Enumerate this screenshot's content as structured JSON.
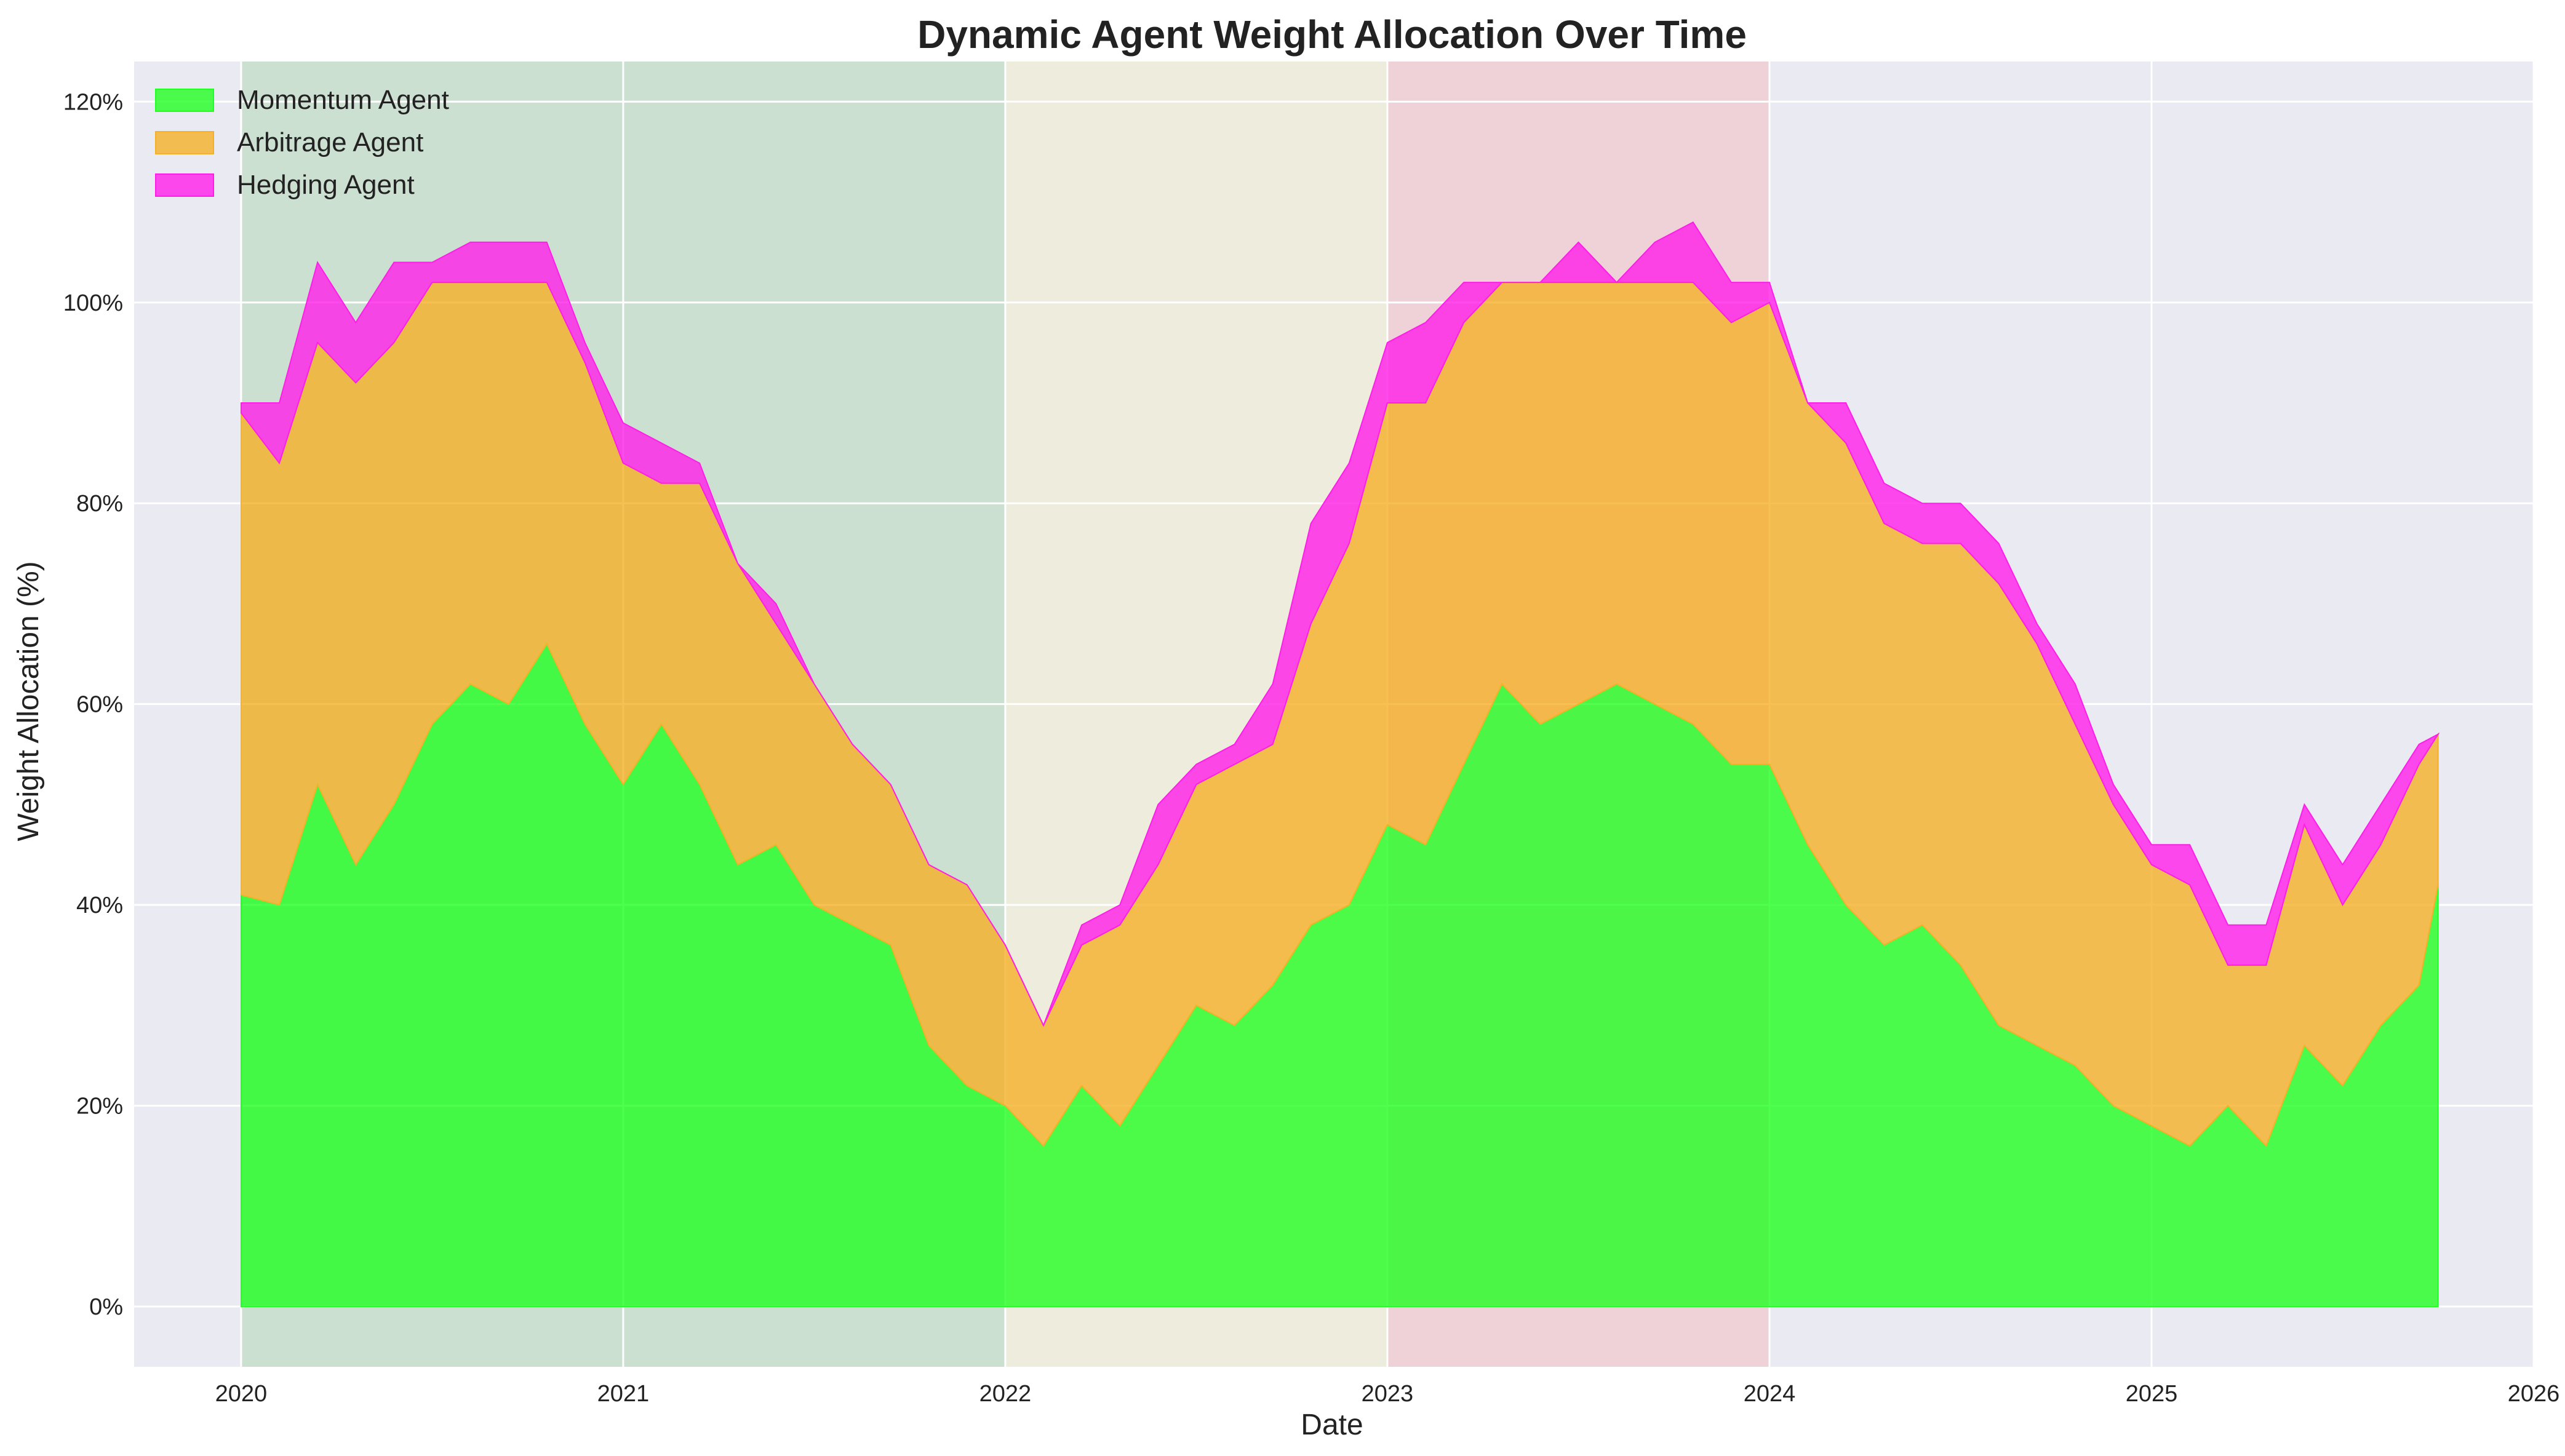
{
  "chart_data": {
    "type": "area",
    "title": "Dynamic Agent Weight Allocation Over Time",
    "xlabel": "Date",
    "ylabel": "Weight Allocation (%)",
    "xlim": [
      2019.72,
      2026.0
    ],
    "ylim": [
      -6,
      124
    ],
    "x_ticks": [
      2020,
      2021,
      2022,
      2023,
      2024,
      2025,
      2026
    ],
    "y_ticks": [
      0,
      20,
      40,
      60,
      80,
      100,
      120
    ],
    "y_tick_labels": [
      "0%",
      "20%",
      "40%",
      "60%",
      "80%",
      "100%",
      "120%"
    ],
    "grid": true,
    "legend_position": "top-left",
    "regions": [
      {
        "from": 2020,
        "to": 2022,
        "color": "#a8d5a8"
      },
      {
        "from": 2022,
        "to": 2023,
        "color": "#f3f0c0"
      },
      {
        "from": 2023,
        "to": 2024,
        "color": "#f5b5b8"
      }
    ],
    "series": [
      {
        "name": "Momentum Agent",
        "color": "#22ff22",
        "x": [
          2020.0,
          2020.1,
          2020.2,
          2020.3,
          2020.4,
          2020.5,
          2020.6,
          2020.7,
          2020.8,
          2020.9,
          2021.0,
          2021.1,
          2021.2,
          2021.3,
          2021.4,
          2021.5,
          2021.6,
          2021.7,
          2021.8,
          2021.9,
          2022.0,
          2022.1,
          2022.2,
          2022.3,
          2022.4,
          2022.5,
          2022.6,
          2022.7,
          2022.8,
          2022.9,
          2023.0,
          2023.1,
          2023.2,
          2023.3,
          2023.4,
          2023.5,
          2023.6,
          2023.7,
          2023.8,
          2023.9,
          2024.0,
          2024.1,
          2024.2,
          2024.3,
          2024.4,
          2024.5,
          2024.6,
          2024.7,
          2024.8,
          2024.9,
          2025.0,
          2025.1,
          2025.2,
          2025.3,
          2025.4,
          2025.5,
          2025.6,
          2025.7,
          2025.75
        ],
        "values": [
          41,
          40,
          52,
          44,
          50,
          58,
          62,
          60,
          66,
          58,
          52,
          58,
          52,
          44,
          46,
          40,
          38,
          36,
          26,
          22,
          20,
          16,
          22,
          18,
          24,
          30,
          28,
          32,
          38,
          40,
          48,
          46,
          54,
          62,
          58,
          60,
          62,
          60,
          58,
          54,
          54,
          46,
          40,
          36,
          38,
          34,
          28,
          26,
          24,
          20,
          18,
          16,
          20,
          16,
          26,
          22,
          28,
          32,
          42
        ]
      },
      {
        "name": "Arbitrage Agent",
        "color": "#f5b028",
        "x": [
          2020.0,
          2020.1,
          2020.2,
          2020.3,
          2020.4,
          2020.5,
          2020.6,
          2020.7,
          2020.8,
          2020.9,
          2021.0,
          2021.1,
          2021.2,
          2021.3,
          2021.4,
          2021.5,
          2021.6,
          2021.7,
          2021.8,
          2021.9,
          2022.0,
          2022.1,
          2022.2,
          2022.3,
          2022.4,
          2022.5,
          2022.6,
          2022.7,
          2022.8,
          2022.9,
          2023.0,
          2023.1,
          2023.2,
          2023.3,
          2023.4,
          2023.5,
          2023.6,
          2023.7,
          2023.8,
          2023.9,
          2024.0,
          2024.1,
          2024.2,
          2024.3,
          2024.4,
          2024.5,
          2024.6,
          2024.7,
          2024.8,
          2024.9,
          2025.0,
          2025.1,
          2025.2,
          2025.3,
          2025.4,
          2025.5,
          2025.6,
          2025.7,
          2025.75
        ],
        "values": [
          48,
          44,
          44,
          48,
          46,
          44,
          40,
          42,
          36,
          36,
          32,
          24,
          30,
          30,
          22,
          22,
          18,
          16,
          18,
          20,
          16,
          12,
          14,
          20,
          20,
          22,
          26,
          24,
          30,
          36,
          42,
          44,
          44,
          40,
          44,
          42,
          40,
          42,
          44,
          44,
          46,
          44,
          46,
          42,
          38,
          42,
          44,
          40,
          34,
          30,
          26,
          26,
          14,
          18,
          22,
          18,
          18,
          22,
          15
        ]
      },
      {
        "name": "Hedging Agent",
        "color": "#ff1ee8",
        "x": [
          2020.0,
          2020.1,
          2020.2,
          2020.3,
          2020.4,
          2020.5,
          2020.6,
          2020.7,
          2020.8,
          2020.9,
          2021.0,
          2021.1,
          2021.2,
          2021.3,
          2021.4,
          2021.5,
          2021.6,
          2021.7,
          2021.8,
          2021.9,
          2022.0,
          2022.1,
          2022.2,
          2022.3,
          2022.4,
          2022.5,
          2022.6,
          2022.7,
          2022.8,
          2022.9,
          2023.0,
          2023.1,
          2023.2,
          2023.3,
          2023.4,
          2023.5,
          2023.6,
          2023.7,
          2023.8,
          2023.9,
          2024.0,
          2024.1,
          2024.2,
          2024.3,
          2024.4,
          2024.5,
          2024.6,
          2024.7,
          2024.8,
          2024.9,
          2025.0,
          2025.1,
          2025.2,
          2025.3,
          2025.4,
          2025.5,
          2025.6,
          2025.7,
          2025.75
        ],
        "values": [
          1,
          6,
          8,
          6,
          8,
          2,
          4,
          4,
          4,
          2,
          4,
          4,
          2,
          0,
          2,
          0,
          0,
          0,
          0,
          0,
          0,
          0,
          2,
          2,
          6,
          2,
          2,
          6,
          10,
          8,
          6,
          8,
          4,
          0,
          0,
          4,
          0,
          4,
          6,
          4,
          2,
          0,
          4,
          4,
          4,
          4,
          4,
          2,
          4,
          2,
          2,
          4,
          4,
          4,
          2,
          4,
          4,
          2,
          0
        ]
      }
    ]
  }
}
